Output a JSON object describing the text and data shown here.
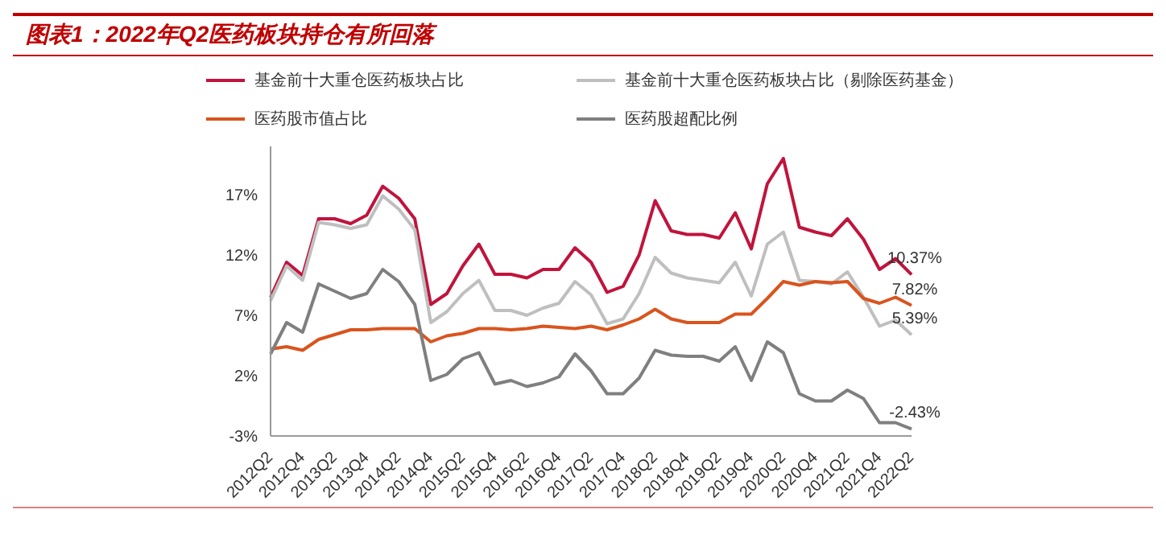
{
  "chart_data": {
    "type": "line",
    "title": "图表1：2022年Q2医药板块持仓有所回落",
    "categories": [
      "2012Q2",
      null,
      "2012Q4",
      null,
      "2013Q2",
      null,
      "2013Q4",
      null,
      "2014Q2",
      null,
      "2014Q4",
      null,
      "2015Q2",
      null,
      "2015Q4",
      null,
      "2016Q2",
      null,
      "2016Q4",
      null,
      "2017Q2",
      null,
      "2017Q4",
      null,
      "2018Q2",
      null,
      "2018Q4",
      null,
      "2019Q2",
      null,
      "2019Q4",
      null,
      "2020Q2",
      null,
      "2020Q4",
      null,
      "2021Q2",
      null,
      "2021Q4",
      null,
      "2022Q2"
    ],
    "series": [
      {
        "name": "基金前十大重仓医药板块占比",
        "color": "#c0143c",
        "values": [
          8.5,
          11.4,
          10.3,
          15.0,
          15.0,
          14.6,
          15.3,
          17.7,
          16.7,
          15.0,
          7.9,
          8.8,
          11.1,
          12.9,
          10.4,
          10.4,
          10.1,
          10.8,
          10.8,
          12.6,
          11.4,
          8.9,
          9.4,
          12.0,
          16.5,
          14.0,
          13.7,
          13.7,
          13.4,
          15.5,
          12.5,
          17.9,
          20.0,
          14.3,
          13.9,
          13.6,
          15.0,
          13.3,
          10.8,
          11.7,
          10.37
        ],
        "value_labels": [
          null,
          null,
          null,
          null,
          null,
          null,
          null,
          null,
          null,
          null,
          null,
          null,
          null,
          null,
          null,
          null,
          null,
          null,
          null,
          null,
          null,
          null,
          null,
          null,
          null,
          null,
          null,
          null,
          null,
          null,
          null,
          null,
          null,
          null,
          null,
          null,
          null,
          null,
          null,
          null,
          "10.37%"
        ]
      },
      {
        "name": "基金前十大重仓医药板块占比（剔除医药基金）",
        "color": "#bfbfbf",
        "values": [
          8.2,
          11.1,
          9.9,
          14.7,
          14.5,
          14.2,
          14.5,
          16.9,
          15.8,
          14.1,
          6.4,
          7.3,
          8.8,
          9.9,
          7.4,
          7.4,
          7.0,
          7.6,
          8.0,
          9.8,
          8.7,
          6.3,
          6.7,
          8.8,
          11.8,
          10.5,
          10.1,
          9.9,
          9.7,
          11.4,
          8.6,
          12.9,
          13.9,
          9.9,
          9.8,
          9.6,
          10.6,
          8.5,
          6.1,
          6.6,
          5.39
        ],
        "value_labels": [
          null,
          null,
          null,
          null,
          null,
          null,
          null,
          null,
          null,
          null,
          null,
          null,
          null,
          null,
          null,
          null,
          null,
          null,
          null,
          null,
          null,
          null,
          null,
          null,
          null,
          null,
          null,
          null,
          null,
          null,
          null,
          null,
          null,
          null,
          null,
          null,
          null,
          null,
          null,
          null,
          "5.39%"
        ]
      },
      {
        "name": "医药股市值占比",
        "color": "#d9541e",
        "values": [
          4.2,
          4.4,
          4.1,
          5.0,
          5.4,
          5.8,
          5.8,
          5.9,
          5.9,
          5.9,
          4.8,
          5.3,
          5.5,
          5.9,
          5.9,
          5.8,
          5.9,
          6.1,
          6.0,
          5.9,
          6.1,
          5.8,
          6.2,
          6.7,
          7.5,
          6.7,
          6.4,
          6.4,
          6.4,
          7.1,
          7.1,
          8.4,
          9.8,
          9.5,
          9.8,
          9.7,
          9.8,
          8.4,
          8.0,
          8.5,
          7.82
        ],
        "value_labels": [
          null,
          null,
          null,
          null,
          null,
          null,
          null,
          null,
          null,
          null,
          null,
          null,
          null,
          null,
          null,
          null,
          null,
          null,
          null,
          null,
          null,
          null,
          null,
          null,
          null,
          null,
          null,
          null,
          null,
          null,
          null,
          null,
          null,
          null,
          null,
          null,
          null,
          null,
          null,
          null,
          "7.82%"
        ]
      },
      {
        "name": "医药股超配比例",
        "color": "#7f7f7f",
        "values": [
          3.8,
          6.4,
          5.6,
          9.6,
          9.0,
          8.4,
          8.8,
          10.8,
          9.8,
          7.9,
          1.6,
          2.1,
          3.4,
          3.9,
          1.3,
          1.6,
          1.1,
          1.4,
          1.9,
          3.8,
          2.4,
          0.5,
          0.5,
          1.8,
          4.1,
          3.7,
          3.6,
          3.6,
          3.2,
          4.4,
          1.6,
          4.8,
          3.9,
          0.5,
          -0.1,
          -0.1,
          0.8,
          0.1,
          -1.9,
          -1.9,
          -2.43
        ],
        "value_labels": [
          null,
          null,
          null,
          null,
          null,
          null,
          null,
          null,
          null,
          null,
          null,
          null,
          null,
          null,
          null,
          null,
          null,
          null,
          null,
          null,
          null,
          null,
          null,
          null,
          null,
          null,
          null,
          null,
          null,
          null,
          null,
          null,
          null,
          null,
          null,
          null,
          null,
          null,
          null,
          null,
          "-2.43%"
        ]
      }
    ],
    "ylim": [
      -3,
      21
    ],
    "yticks": [
      {
        "value": -3,
        "label": "-3%"
      },
      {
        "value": 2,
        "label": "2%"
      },
      {
        "value": 7,
        "label": "7%"
      },
      {
        "value": 12,
        "label": "12%"
      },
      {
        "value": 17,
        "label": "17%"
      }
    ],
    "legend": "top"
  }
}
